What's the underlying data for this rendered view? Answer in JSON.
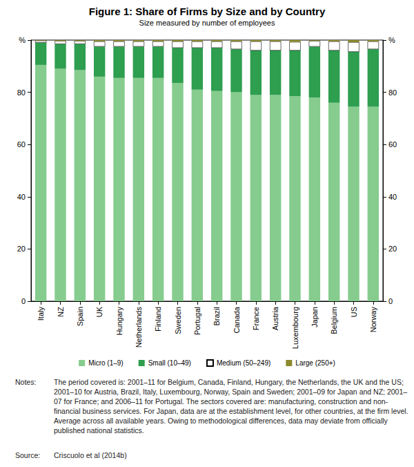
{
  "chart_data": {
    "type": "bar",
    "title": "Figure 1: Share of Firms by Size and by Country",
    "subtitle": "Size measured by number of employees",
    "categories": [
      "Italy",
      "NZ",
      "Spain",
      "UK",
      "Hungary",
      "Netherlands",
      "Finland",
      "Sweden",
      "Portugal",
      "Brazil",
      "Canada",
      "France",
      "Austria",
      "Luxembourg",
      "Japan",
      "Belgium",
      "US",
      "Norway"
    ],
    "series": [
      {
        "name": "Micro (1–9)",
        "color": "#86cc8e",
        "values": [
          90.5,
          89,
          88.5,
          86,
          85.5,
          85.5,
          85.5,
          83.5,
          81,
          80.5,
          80,
          79,
          79,
          78.5,
          78,
          76,
          74.5,
          74.5
        ]
      },
      {
        "name": "Small (10–49)",
        "color": "#2e9e4f",
        "values": [
          8.5,
          9.5,
          10,
          11.5,
          12,
          12,
          12,
          13.5,
          16,
          16.5,
          16.5,
          17,
          17,
          17.5,
          19.5,
          20,
          21,
          22
        ]
      },
      {
        "name": "Medium (50–249)",
        "color": "#ffffff",
        "values": [
          0.8,
          1.2,
          1.2,
          2,
          2,
          2,
          2,
          2.5,
          2.5,
          2.5,
          3,
          3.5,
          3.5,
          3.3,
          2.2,
          3.5,
          3.7,
          3
        ]
      },
      {
        "name": "Large (250+)",
        "color": "#8c8a2c",
        "values": [
          0.2,
          0.3,
          0.3,
          0.5,
          0.5,
          0.5,
          0.5,
          0.5,
          0.5,
          0.5,
          0.5,
          0.5,
          0.5,
          0.7,
          0.3,
          0.5,
          0.8,
          0.5
        ]
      }
    ],
    "ylim": [
      0,
      100
    ],
    "yticks": [
      0,
      20,
      40,
      60,
      80,
      {
        "value": 100,
        "label": "%"
      }
    ],
    "stacked": true,
    "grid": false,
    "legend": "bottom",
    "notes_label": "Notes:",
    "notes": "The period covered is: 2001–11 for Belgium, Canada, Finland, Hungary, the Netherlands, the UK and the US; 2001–10 for Austria, Brazil, Italy, Luxembourg, Norway, Spain and Sweden; 2001–09 for Japan and NZ; 2001–07 for France; and 2006–11 for Portugal. The sectors covered are: manufacturing, construction and non-financial business services. For Japan, data are at the establishment level, for other countries, at the firm level. Average across all available years. Owing to methodological differences, data may deviate from officially published national statistics.",
    "source_label": "Source:",
    "source": "Criscuolo et al (2014b)"
  }
}
